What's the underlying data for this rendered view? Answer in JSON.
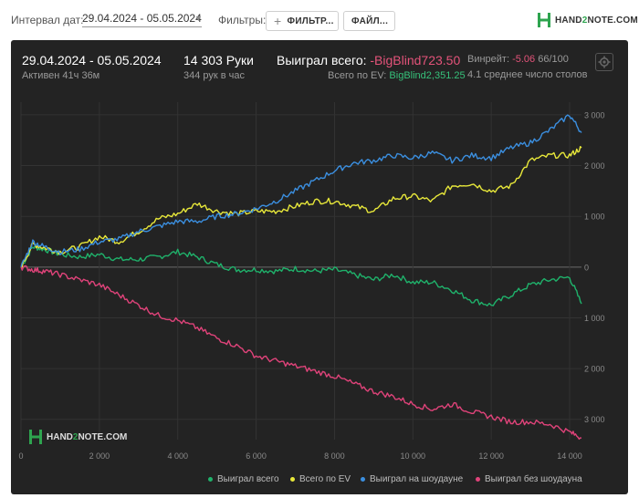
{
  "toolbar": {
    "date_label": "Интервал дат:",
    "date_range": "29.04.2024 - 05.05.2024",
    "filters_label": "Фильтры:",
    "filter_button": "ФИЛЬТР...",
    "file_button": "ФАЙЛ...",
    "logo_text_a": "HAND",
    "logo_text_b": "2",
    "logo_text_c": "NOTE.COM"
  },
  "summary": {
    "period": "29.04.2024 - 05.05.2024",
    "active": "Активен 41ч 36м",
    "hands": "14 303 Руки",
    "hands_per_hour": "344 рук в час",
    "won_total_label": "Выиграл всего:",
    "won_total_value": "-BigBlind723.50",
    "ev_label": "Всего по EV:",
    "ev_value": "BigBlind2,351.25",
    "winrate_label": "Винрейт:",
    "winrate_value": "-5.06",
    "winrate_suffix": "66/100",
    "tables": "4.1 среднее число столов"
  },
  "watermark": {
    "a": "HAND",
    "b": "2",
    "c": "NOTE.COM"
  },
  "colors": {
    "won": "#1fb26b",
    "ev": "#e8e83a",
    "showdown": "#3b8fe0",
    "no_showdown": "#e0437a"
  },
  "chart_data": {
    "type": "line",
    "x_ticks": [
      "0",
      "2 000",
      "4 000",
      "6 000",
      "8 000",
      "10 000",
      "12 000",
      "14 000"
    ],
    "x_tick_values": [
      0,
      2000,
      4000,
      6000,
      8000,
      10000,
      12000,
      14000
    ],
    "y_ticks": [
      "3 000",
      "2 000",
      "1 000",
      "0",
      "1 000",
      "2 000",
      "3 000"
    ],
    "y_tick_values": [
      3000,
      2000,
      1000,
      0,
      -1000,
      -2000,
      -3000
    ],
    "xlim": [
      0,
      14303
    ],
    "ylim": [
      -3400,
      3250
    ],
    "grid": true,
    "legend_position": "bottom-right",
    "series": [
      {
        "name": "Выиграл всего",
        "color": "#1fb26b",
        "x": [
          0,
          300,
          600,
          1000,
          1500,
          2000,
          2500,
          3000,
          3500,
          4000,
          4500,
          5000,
          5500,
          6000,
          6500,
          7000,
          7500,
          8000,
          8500,
          9000,
          9500,
          10000,
          10500,
          11000,
          11500,
          12000,
          12500,
          13000,
          13500,
          14000,
          14303
        ],
        "y": [
          0,
          400,
          350,
          250,
          200,
          250,
          150,
          150,
          200,
          300,
          200,
          50,
          -50,
          -50,
          -80,
          -30,
          -80,
          -50,
          -150,
          -250,
          -150,
          -300,
          -300,
          -450,
          -650,
          -750,
          -550,
          -350,
          -250,
          -200,
          -723
        ]
      },
      {
        "name": "Всего по EV",
        "color": "#e8e83a",
        "x": [
          0,
          300,
          600,
          1000,
          1500,
          2000,
          2500,
          3000,
          3500,
          4000,
          4500,
          5000,
          5500,
          6000,
          6500,
          7000,
          7500,
          8000,
          8500,
          9000,
          9500,
          10000,
          10500,
          11000,
          11500,
          12000,
          12500,
          13000,
          13500,
          14000,
          14303
        ],
        "y": [
          0,
          450,
          380,
          300,
          400,
          600,
          500,
          700,
          950,
          1050,
          1250,
          1100,
          1050,
          1100,
          1100,
          1200,
          1300,
          1300,
          1200,
          1100,
          1350,
          1400,
          1300,
          1600,
          1650,
          1500,
          1600,
          2100,
          2200,
          2200,
          2351
        ]
      },
      {
        "name": "Выиграл на шоудауне",
        "color": "#3b8fe0",
        "x": [
          0,
          300,
          600,
          1000,
          1500,
          2000,
          2500,
          3000,
          3500,
          4000,
          4500,
          5000,
          5500,
          6000,
          6500,
          7000,
          7500,
          8000,
          8500,
          9000,
          9500,
          10000,
          10500,
          11000,
          11500,
          12000,
          12500,
          13000,
          13500,
          14000,
          14303
        ],
        "y": [
          0,
          500,
          400,
          300,
          350,
          500,
          550,
          700,
          800,
          900,
          900,
          1000,
          1050,
          1150,
          1300,
          1500,
          1700,
          1900,
          2050,
          2100,
          2200,
          2150,
          2250,
          2100,
          2200,
          2150,
          2350,
          2450,
          2700,
          3000,
          2650
        ]
      },
      {
        "name": "Выиграл без шоудауна",
        "color": "#e0437a",
        "x": [
          0,
          300,
          600,
          1000,
          1500,
          2000,
          2500,
          3000,
          3500,
          4000,
          4500,
          5000,
          5500,
          6000,
          6500,
          7000,
          7500,
          8000,
          8500,
          9000,
          9500,
          10000,
          10500,
          11000,
          11500,
          12000,
          12500,
          13000,
          13500,
          14000,
          14303
        ],
        "y": [
          0,
          -50,
          -80,
          -150,
          -250,
          -350,
          -550,
          -750,
          -950,
          -1050,
          -1200,
          -1400,
          -1550,
          -1750,
          -1850,
          -1950,
          -2050,
          -2150,
          -2300,
          -2450,
          -2550,
          -2700,
          -2800,
          -2700,
          -2850,
          -2950,
          -3050,
          -3050,
          -3100,
          -3250,
          -3370
        ]
      }
    ]
  }
}
